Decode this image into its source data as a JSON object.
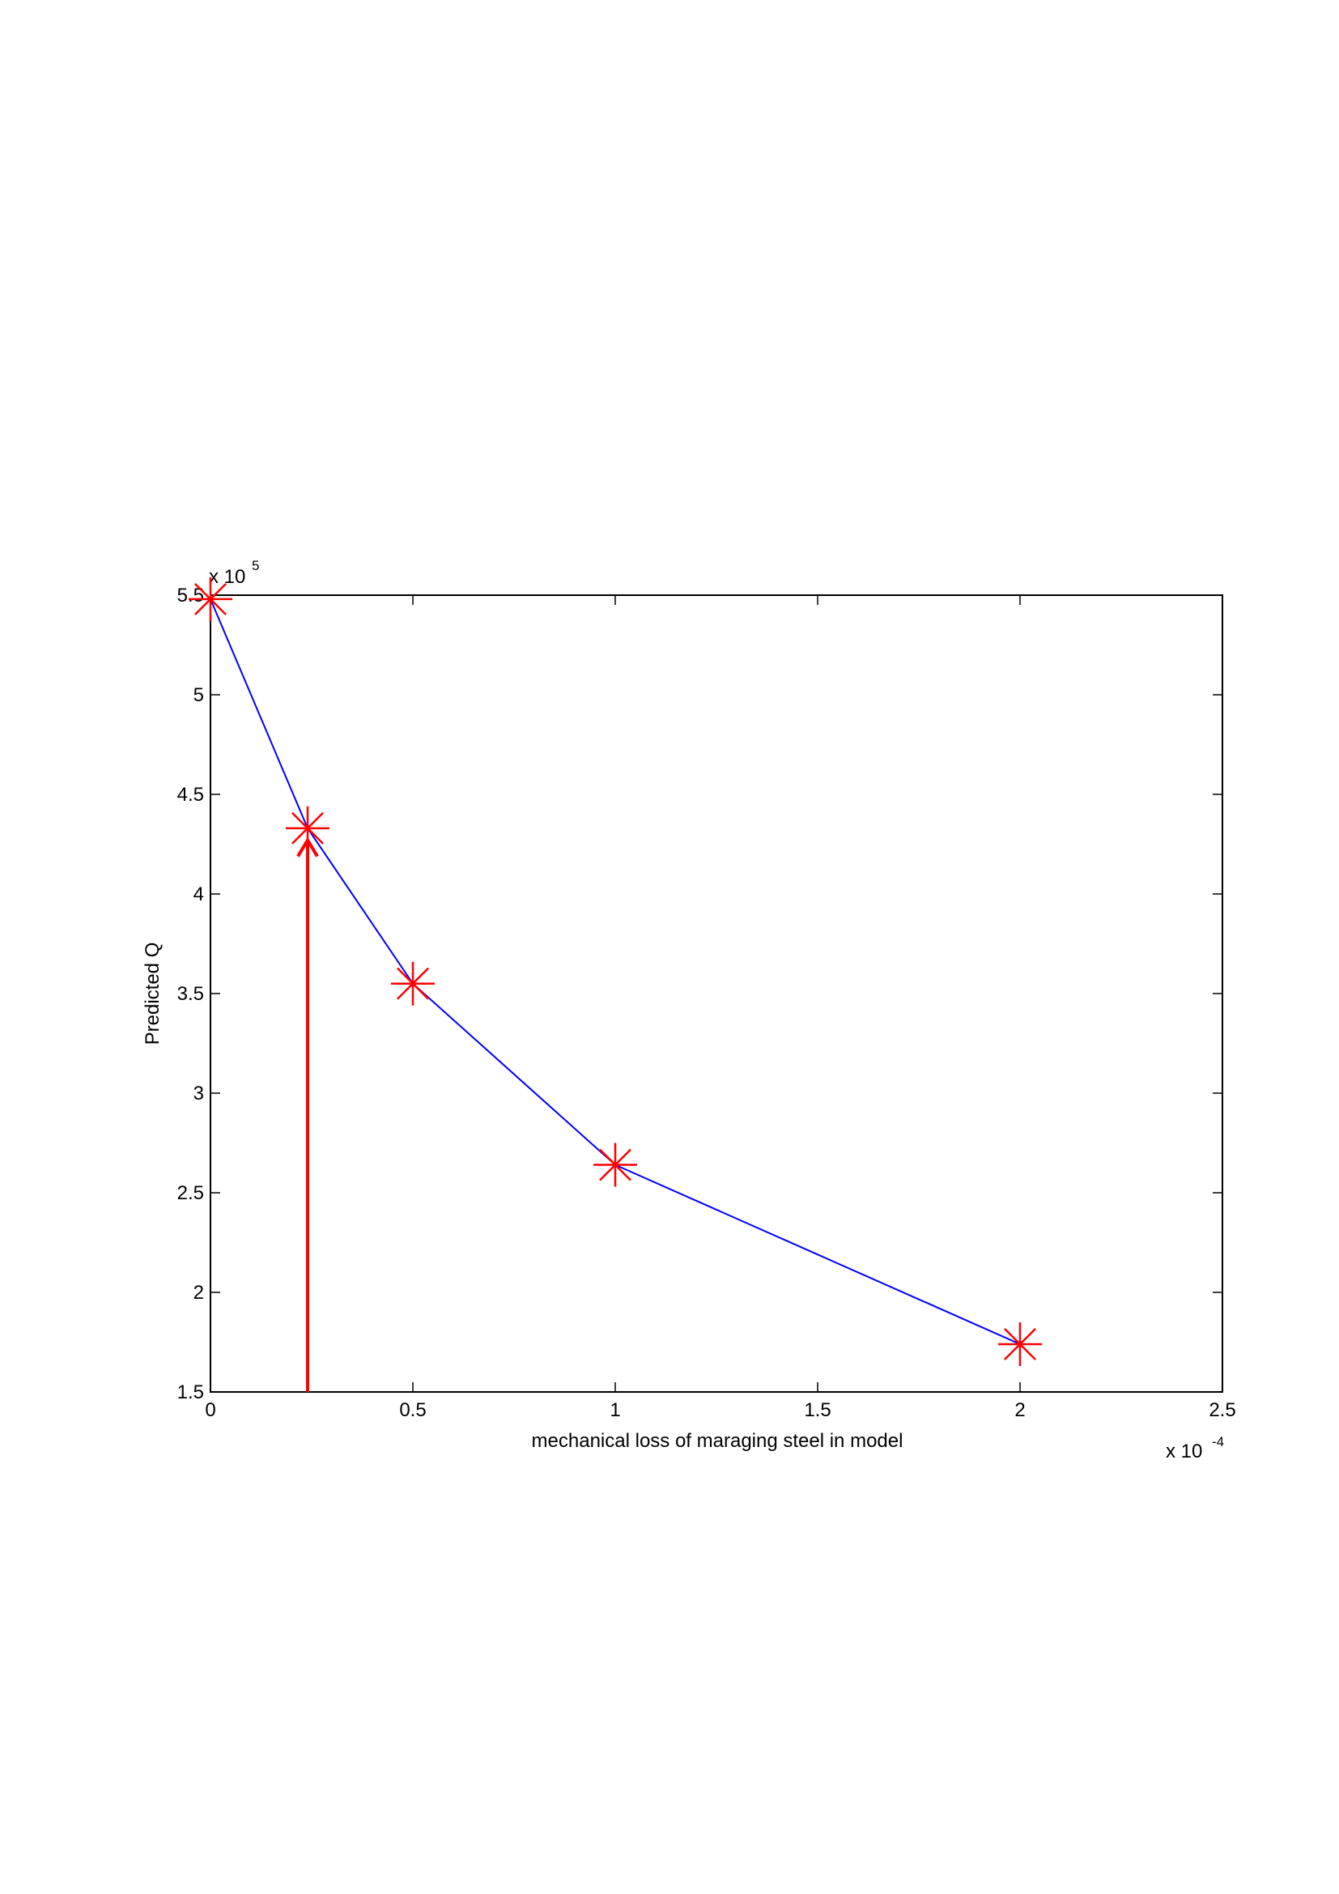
{
  "chart_data": {
    "type": "line",
    "xlabel": "mechanical loss of maraging steel in model",
    "ylabel": "Predicted Q",
    "x_multiplier": {
      "base": "x 10",
      "exponent": "-4"
    },
    "y_multiplier": {
      "base": "x 10",
      "exponent": "5"
    },
    "x": [
      0,
      0.24,
      0.5,
      1,
      2
    ],
    "series": [
      {
        "name": "Predicted Q",
        "color": "#0000ff",
        "marker_color": "#ff0000",
        "values": [
          5.48,
          4.33,
          3.55,
          2.64,
          1.74
        ]
      }
    ],
    "arrow": {
      "color": "#ff0000",
      "x": 0.24,
      "y_start": 1.5,
      "y_end": 4.27
    },
    "xlim": [
      0,
      2.5
    ],
    "xticks": [
      0,
      0.5,
      1,
      1.5,
      2,
      2.5
    ],
    "ylim": [
      1.5,
      5.5
    ],
    "yticks": [
      1.5,
      2,
      2.5,
      3,
      3.5,
      4,
      4.5,
      5,
      5.5
    ],
    "grid": false
  }
}
